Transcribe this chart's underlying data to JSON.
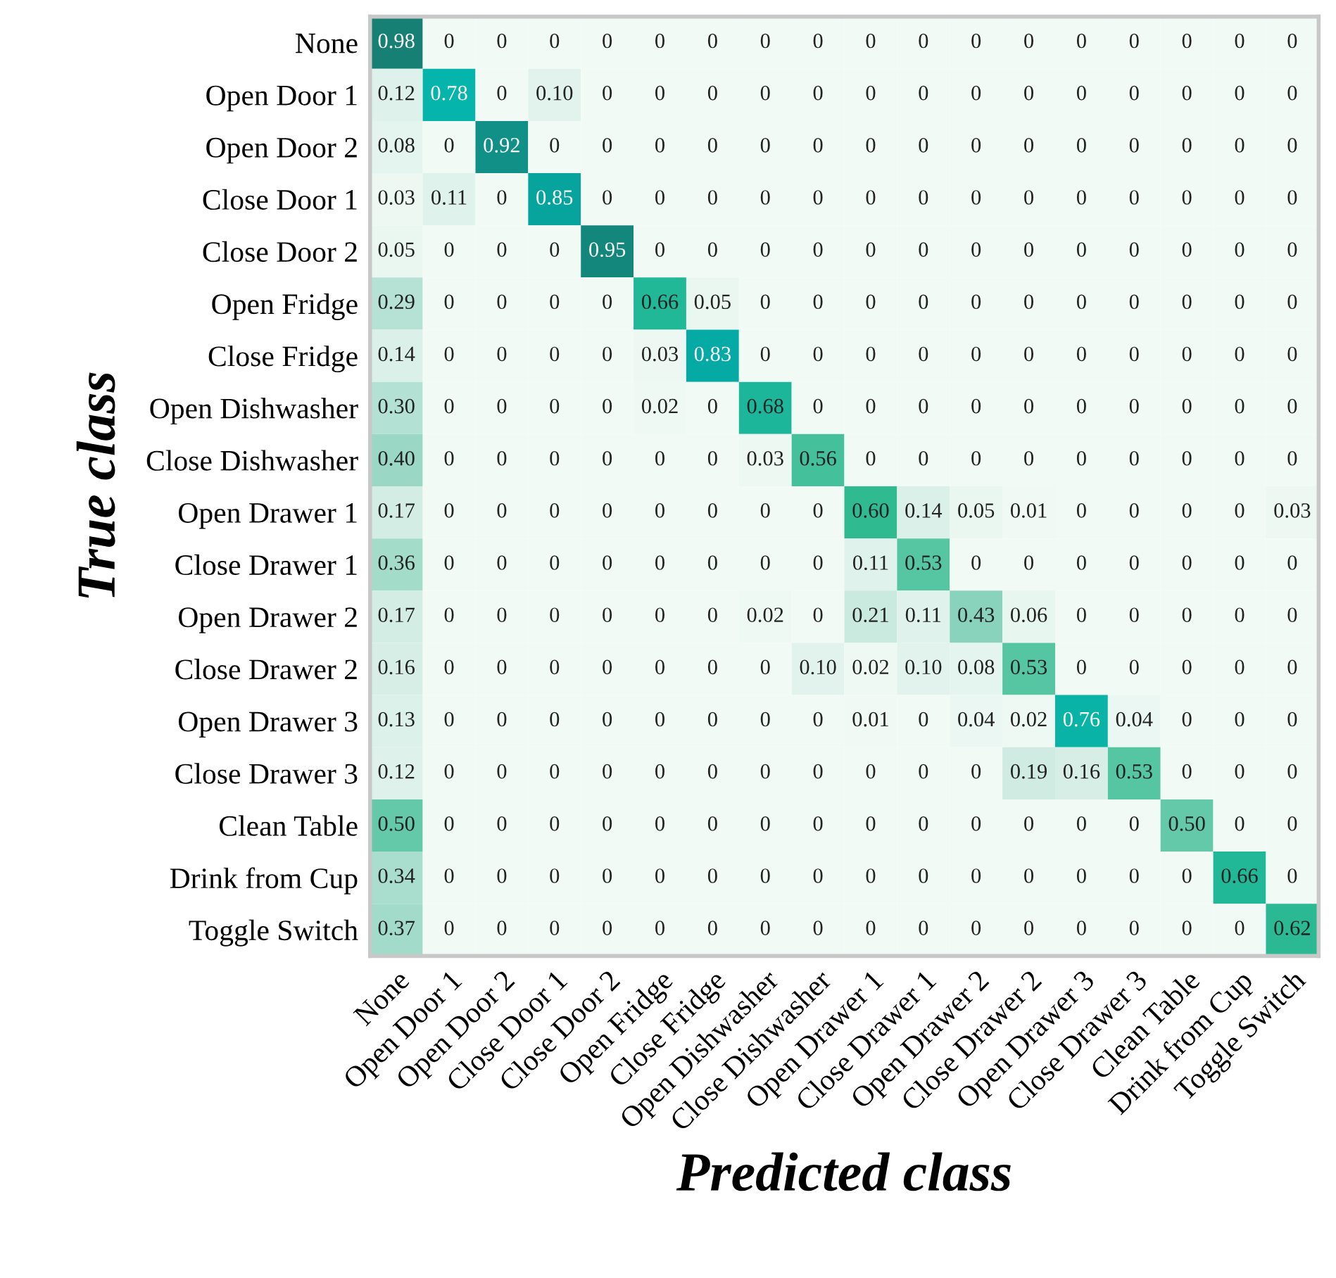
{
  "chart_data": {
    "type": "heatmap",
    "xlabel": "Predicted class",
    "ylabel": "True class",
    "categories": [
      "None",
      "Open Door 1",
      "Open Door 2",
      "Close Door 1",
      "Close Door 2",
      "Open Fridge",
      "Close Fridge",
      "Open Dishwasher",
      "Close Dishwasher",
      "Open Drawer 1",
      "Close Drawer 1",
      "Open Drawer 2",
      "Close Drawer 2",
      "Open Drawer 3",
      "Close Drawer 3",
      "Clean Table",
      "Drink from Cup",
      "Toggle Switch"
    ],
    "y_categories": [
      "None",
      "Open Door 1",
      "Open Door 2",
      "Close Door 1",
      "Close Door 2",
      "Open Fridge",
      "Close Fridge",
      "Open Dishwasher",
      "Close Dishwasher",
      "Open Drawer 1",
      "Close Drawer 1",
      "Open Drawer 2",
      "Close Drawer 2",
      "Open Drawer 3",
      "Close Drawer 3",
      "Clean Table",
      "Drink from Cup",
      "Toggle Switch"
    ],
    "cells": [
      [
        0.98,
        0,
        0,
        0,
        0,
        0,
        0,
        0,
        0,
        0,
        0,
        0,
        0,
        0,
        0,
        0,
        0,
        0
      ],
      [
        0.12,
        0.78,
        0,
        0.1,
        0,
        0,
        0,
        0,
        0,
        0,
        0,
        0,
        0,
        0,
        0,
        0,
        0,
        0
      ],
      [
        0.08,
        0,
        0.92,
        0,
        0,
        0,
        0,
        0,
        0,
        0,
        0,
        0,
        0,
        0,
        0,
        0,
        0,
        0
      ],
      [
        0.03,
        0.11,
        0,
        0.85,
        0,
        0,
        0,
        0,
        0,
        0,
        0,
        0,
        0,
        0,
        0,
        0,
        0,
        0
      ],
      [
        0.05,
        0,
        0,
        0,
        0.95,
        0,
        0,
        0,
        0,
        0,
        0,
        0,
        0,
        0,
        0,
        0,
        0,
        0
      ],
      [
        0.29,
        0,
        0,
        0,
        0,
        0.66,
        0.05,
        0,
        0,
        0,
        0,
        0,
        0,
        0,
        0,
        0,
        0,
        0
      ],
      [
        0.14,
        0,
        0,
        0,
        0,
        0.03,
        0.83,
        0,
        0,
        0,
        0,
        0,
        0,
        0,
        0,
        0,
        0,
        0
      ],
      [
        0.3,
        0,
        0,
        0,
        0,
        0.02,
        0,
        0.68,
        0,
        0,
        0,
        0,
        0,
        0,
        0,
        0,
        0,
        0
      ],
      [
        0.4,
        0,
        0,
        0,
        0,
        0,
        0,
        0.03,
        0.56,
        0,
        0,
        0,
        0,
        0,
        0,
        0,
        0,
        0
      ],
      [
        0.17,
        0,
        0,
        0,
        0,
        0,
        0,
        0,
        0,
        0.6,
        0.14,
        0.05,
        0.01,
        0,
        0,
        0,
        0,
        0.03
      ],
      [
        0.36,
        0,
        0,
        0,
        0,
        0,
        0,
        0,
        0,
        0.11,
        0.53,
        0,
        0,
        0,
        0,
        0,
        0,
        0
      ],
      [
        0.17,
        0,
        0,
        0,
        0,
        0,
        0,
        0.02,
        0,
        0.21,
        0.11,
        0.43,
        0.06,
        0,
        0,
        0,
        0,
        0
      ],
      [
        0.16,
        0,
        0,
        0,
        0,
        0,
        0,
        0,
        0.1,
        0.02,
        0.1,
        0.08,
        0.53,
        0,
        0,
        0,
        0,
        0
      ],
      [
        0.13,
        0,
        0,
        0,
        0,
        0,
        0,
        0,
        0,
        0.01,
        0,
        0.04,
        0.02,
        0.76,
        0.04,
        0,
        0,
        0
      ],
      [
        0.12,
        0,
        0,
        0,
        0,
        0,
        0,
        0,
        0,
        0,
        0,
        0,
        0.19,
        0.16,
        0.53,
        0,
        0,
        0
      ],
      [
        0.5,
        0,
        0,
        0,
        0,
        0,
        0,
        0,
        0,
        0,
        0,
        0,
        0,
        0,
        0,
        0.5,
        0,
        0
      ],
      [
        0.34,
        0,
        0,
        0,
        0,
        0,
        0,
        0,
        0,
        0,
        0,
        0,
        0,
        0,
        0,
        0,
        0.66,
        0
      ],
      [
        0.37,
        0,
        0,
        0,
        0,
        0,
        0,
        0,
        0,
        0,
        0,
        0,
        0,
        0,
        0,
        0,
        0,
        0.62
      ]
    ],
    "cell_labels": [
      [
        "0.98",
        "0",
        "0",
        "0",
        "0",
        "0",
        "0",
        "0",
        "0",
        "0",
        "0",
        "0",
        "0",
        "0",
        "0",
        "0",
        "0",
        "0"
      ],
      [
        "0.12",
        "0.78",
        "0",
        "0.10",
        "0",
        "0",
        "0",
        "0",
        "0",
        "0",
        "0",
        "0",
        "0",
        "0",
        "0",
        "0",
        "0",
        "0"
      ],
      [
        "0.08",
        "0",
        "0.92",
        "0",
        "0",
        "0",
        "0",
        "0",
        "0",
        "0",
        "0",
        "0",
        "0",
        "0",
        "0",
        "0",
        "0",
        "0"
      ],
      [
        "0.03",
        "0.11",
        "0",
        "0.85",
        "0",
        "0",
        "0",
        "0",
        "0",
        "0",
        "0",
        "0",
        "0",
        "0",
        "0",
        "0",
        "0",
        "0"
      ],
      [
        "0.05",
        "0",
        "0",
        "0",
        "0.95",
        "0",
        "0",
        "0",
        "0",
        "0",
        "0",
        "0",
        "0",
        "0",
        "0",
        "0",
        "0",
        "0"
      ],
      [
        "0.29",
        "0",
        "0",
        "0",
        "0",
        "0.66",
        "0.05",
        "0",
        "0",
        "0",
        "0",
        "0",
        "0",
        "0",
        "0",
        "0",
        "0",
        "0"
      ],
      [
        "0.14",
        "0",
        "0",
        "0",
        "0",
        "0.03",
        "0.83",
        "0",
        "0",
        "0",
        "0",
        "0",
        "0",
        "0",
        "0",
        "0",
        "0",
        "0"
      ],
      [
        "0.30",
        "0",
        "0",
        "0",
        "0",
        "0.02",
        "0",
        "0.68",
        "0",
        "0",
        "0",
        "0",
        "0",
        "0",
        "0",
        "0",
        "0",
        "0"
      ],
      [
        "0.40",
        "0",
        "0",
        "0",
        "0",
        "0",
        "0",
        "0.03",
        "0.56",
        "0",
        "0",
        "0",
        "0",
        "0",
        "0",
        "0",
        "0",
        "0"
      ],
      [
        "0.17",
        "0",
        "0",
        "0",
        "0",
        "0",
        "0",
        "0",
        "0",
        "0.60",
        "0.14",
        "0.05",
        "0.01",
        "0",
        "0",
        "0",
        "0",
        "0.03"
      ],
      [
        "0.36",
        "0",
        "0",
        "0",
        "0",
        "0",
        "0",
        "0",
        "0",
        "0.11",
        "0.53",
        "0",
        "0",
        "0",
        "0",
        "0",
        "0",
        "0"
      ],
      [
        "0.17",
        "0",
        "0",
        "0",
        "0",
        "0",
        "0",
        "0.02",
        "0",
        "0.21",
        "0.11",
        "0.43",
        "0.06",
        "0",
        "0",
        "0",
        "0",
        "0"
      ],
      [
        "0.16",
        "0",
        "0",
        "0",
        "0",
        "0",
        "0",
        "0",
        "0.10",
        "0.02",
        "0.10",
        "0.08",
        "0.53",
        "0",
        "0",
        "0",
        "0",
        "0"
      ],
      [
        "0.13",
        "0",
        "0",
        "0",
        "0",
        "0",
        "0",
        "0",
        "0",
        "0.01",
        "0",
        "0.04",
        "0.02",
        "0.76",
        "0.04",
        "0",
        "0",
        "0"
      ],
      [
        "0.12",
        "0",
        "0",
        "0",
        "0",
        "0",
        "0",
        "0",
        "0",
        "0",
        "0",
        "0",
        "0.19",
        "0.16",
        "0.53",
        "0",
        "0",
        "0"
      ],
      [
        "0.50",
        "0",
        "0",
        "0",
        "0",
        "0",
        "0",
        "0",
        "0",
        "0",
        "0",
        "0",
        "0",
        "0",
        "0",
        "0.50",
        "0",
        "0"
      ],
      [
        "0.34",
        "0",
        "0",
        "0",
        "0",
        "0",
        "0",
        "0",
        "0",
        "0",
        "0",
        "0",
        "0",
        "0",
        "0",
        "0",
        "0.66",
        "0"
      ],
      [
        "0.37",
        "0",
        "0",
        "0",
        "0",
        "0",
        "0",
        "0",
        "0",
        "0",
        "0",
        "0",
        "0",
        "0",
        "0",
        "0",
        "0",
        "0.62"
      ]
    ]
  }
}
